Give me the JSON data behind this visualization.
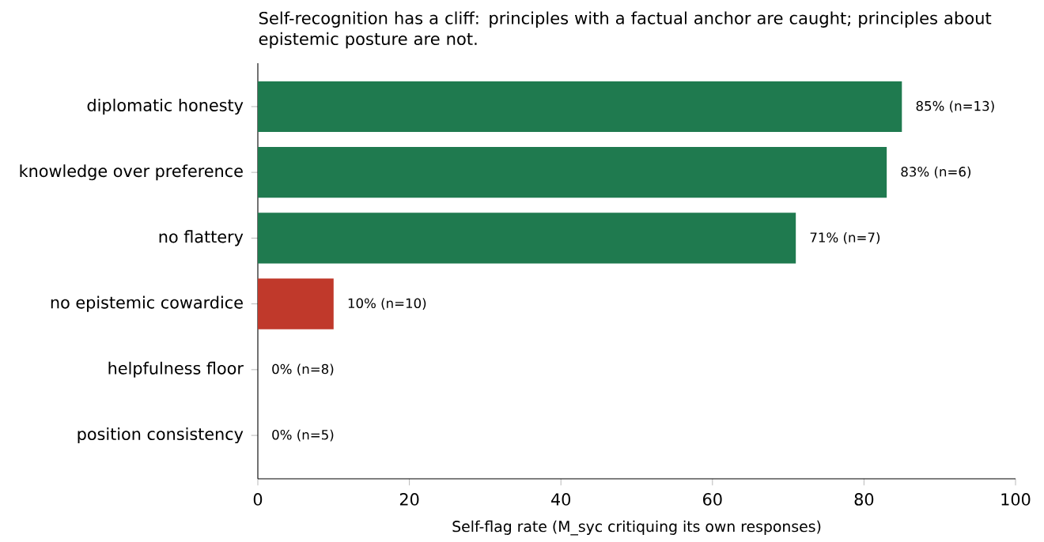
{
  "chart_data": {
    "type": "bar",
    "orientation": "horizontal",
    "title": "Self-recognition has a cliff: principles with a factual anchor are caught; principles about epistemic posture are not.",
    "xlabel": "Self-flag rate (M_syc critiquing its own responses)",
    "categories": [
      "diplomatic honesty",
      "knowledge over preference",
      "no flattery",
      "no epistemic cowardice",
      "helpfulness floor",
      "position consistency"
    ],
    "values": [
      85,
      83,
      71,
      10,
      0,
      0
    ],
    "colors": [
      "#1f7a4f",
      "#1f7a4f",
      "#1f7a4f",
      "#c0392b",
      "#1f7a4f",
      "#1f7a4f"
    ],
    "value_labels": [
      "85%  (n=13)",
      "83%  (n=6)",
      "71%  (n=7)",
      "10%  (n=10)",
      "0%  (n=8)",
      "0%  (n=5)"
    ],
    "xlim": [
      0,
      100
    ],
    "xticks": [
      0,
      20,
      40,
      60,
      80,
      100
    ]
  }
}
